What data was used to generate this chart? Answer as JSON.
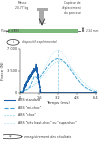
{
  "label_masse": "Masse\n20,77 kg",
  "label_capteur": "Capteur de\ndéplacement\ndu ponceur",
  "label_plate": "Plaque d'ABS",
  "label_thickness": "2,54 mm",
  "label_device": "dispositif expérimental",
  "xlabel": "Temps (ms)",
  "ylabel": "Force (N)",
  "ylim": [
    0,
    7000
  ],
  "xlim": [
    0,
    6.5
  ],
  "ytick_vals": [
    0,
    3500,
    7000
  ],
  "ytick_labels": [
    "0",
    "3 500",
    "7 000"
  ],
  "xtick_vals": [
    0,
    1.6,
    3.2,
    4.8,
    6.4
  ],
  "xtick_labels": [
    "0",
    "1,6",
    "3,2",
    "4,8",
    "6,4"
  ],
  "legend_entries": [
    "ABS standard",
    "ABS \"mi-choc\"",
    "ABS \"choc\"",
    "ABS \"très haut-choc\" ou \"superchoc\""
  ],
  "legend_linestyles": [
    "-",
    "--",
    ":",
    ":"
  ],
  "legend_linewidths": [
    0.8,
    0.8,
    0.8,
    0.8
  ],
  "note": "enregistrement des résultats",
  "bg_color": "#ffffff",
  "line_colors": [
    "#1a5fa8",
    "#3a9fd4",
    "#7acce8",
    "#b0ddf5"
  ],
  "vline_x": 3.2,
  "vline_color": "#3a9fd4"
}
